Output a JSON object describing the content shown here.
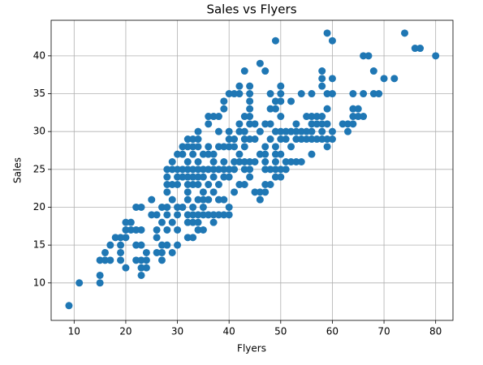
{
  "chart_data": {
    "type": "scatter",
    "title": "Sales vs Flyers",
    "x_label": "Flyers",
    "y_label": "Sales",
    "color": "#1f77b4",
    "grid": true,
    "xlim": [
      5.55,
      83.35
    ],
    "ylim": [
      5.05,
      44.7
    ],
    "xticks": [
      10,
      20,
      30,
      40,
      50,
      60,
      70,
      80
    ],
    "yticks": [
      10,
      15,
      20,
      25,
      30,
      35,
      40
    ],
    "x": [
      9,
      11,
      15,
      15,
      15,
      16,
      16,
      17,
      17,
      18,
      19,
      19,
      19,
      19,
      20,
      20,
      20,
      20,
      21,
      21,
      22,
      22,
      22,
      22,
      23,
      23,
      23,
      23,
      23,
      23,
      24,
      24,
      24,
      25,
      25,
      26,
      26,
      26,
      26,
      27,
      27,
      27,
      27,
      27,
      28,
      28,
      28,
      28,
      28,
      28,
      28,
      28,
      29,
      29,
      29,
      29,
      29,
      29,
      30,
      30,
      30,
      30,
      30,
      30,
      30,
      30,
      31,
      31,
      31,
      31,
      31,
      32,
      32,
      32,
      32,
      32,
      32,
      32,
      32,
      32,
      32,
      32,
      33,
      33,
      33,
      33,
      33,
      33,
      33,
      33,
      33,
      33,
      34,
      34,
      34,
      34,
      34,
      34,
      34,
      34,
      34,
      34,
      34,
      35,
      35,
      35,
      35,
      35,
      35,
      35,
      35,
      36,
      36,
      36,
      36,
      36,
      36,
      36,
      36,
      37,
      37,
      37,
      37,
      37,
      37,
      37,
      37,
      38,
      38,
      38,
      38,
      38,
      38,
      38,
      39,
      39,
      39,
      39,
      39,
      39,
      39,
      39,
      40,
      40,
      40,
      40,
      40,
      40,
      40,
      40,
      41,
      41,
      41,
      41,
      41,
      41,
      42,
      42,
      42,
      42,
      42,
      42,
      42,
      43,
      43,
      43,
      43,
      43,
      43,
      43,
      43,
      44,
      44,
      44,
      44,
      44,
      44,
      44,
      44,
      44,
      44,
      45,
      45,
      45,
      45,
      46,
      46,
      46,
      46,
      46,
      47,
      47,
      47,
      47,
      47,
      47,
      47,
      47,
      48,
      48,
      48,
      48,
      48,
      48,
      49,
      49,
      49,
      49,
      49,
      49,
      49,
      49,
      49,
      50,
      50,
      50,
      50,
      50,
      50,
      50,
      50,
      50,
      51,
      51,
      51,
      51,
      52,
      52,
      52,
      52,
      53,
      53,
      53,
      53,
      54,
      54,
      54,
      54,
      55,
      55,
      55,
      56,
      56,
      56,
      56,
      56,
      56,
      57,
      57,
      57,
      58,
      58,
      58,
      58,
      58,
      58,
      58,
      59,
      59,
      59,
      59,
      59,
      59,
      60,
      60,
      60,
      60,
      60,
      62,
      63,
      63,
      64,
      64,
      64,
      64,
      65,
      65,
      66,
      66,
      66,
      67,
      68,
      68,
      69,
      70,
      72,
      74,
      76,
      77,
      80
    ],
    "values": [
      7,
      10,
      10,
      11,
      13,
      13,
      14,
      13,
      15,
      16,
      13,
      14,
      15,
      16,
      12,
      16,
      17,
      18,
      17,
      18,
      13,
      15,
      17,
      20,
      11,
      12,
      13,
      15,
      17,
      20,
      12,
      13,
      14,
      19,
      21,
      14,
      16,
      17,
      19,
      13,
      14,
      15,
      18,
      20,
      15,
      17,
      19,
      20,
      22,
      23,
      24,
      25,
      14,
      18,
      21,
      23,
      25,
      26,
      15,
      17,
      19,
      20,
      23,
      24,
      25,
      27,
      20,
      24,
      25,
      27,
      28,
      16,
      18,
      19,
      21,
      22,
      23,
      24,
      25,
      26,
      28,
      29,
      16,
      18,
      19,
      20,
      23,
      24,
      25,
      27,
      28,
      29,
      17,
      18,
      19,
      21,
      23,
      24,
      25,
      26,
      28,
      29,
      30,
      17,
      19,
      20,
      21,
      22,
      24,
      25,
      27,
      19,
      21,
      23,
      25,
      27,
      28,
      31,
      32,
      18,
      19,
      22,
      24,
      25,
      26,
      27,
      32,
      19,
      21,
      23,
      25,
      28,
      30,
      32,
      19,
      21,
      24,
      25,
      26,
      28,
      33,
      34,
      19,
      20,
      24,
      25,
      28,
      29,
      30,
      35,
      22,
      25,
      26,
      28,
      29,
      35,
      23,
      26,
      27,
      30,
      31,
      35,
      36,
      23,
      25,
      26,
      28,
      29,
      30,
      32,
      38,
      24,
      25,
      26,
      29,
      31,
      32,
      33,
      34,
      35,
      36,
      22,
      26,
      29,
      31,
      21,
      22,
      27,
      30,
      39,
      22,
      23,
      25,
      26,
      27,
      28,
      31,
      38,
      23,
      25,
      29,
      31,
      33,
      35,
      24,
      25,
      26,
      27,
      28,
      30,
      33,
      34,
      42,
      24,
      25,
      27,
      29,
      30,
      32,
      34,
      35,
      36,
      25,
      26,
      29,
      30,
      26,
      28,
      30,
      34,
      26,
      29,
      30,
      31,
      26,
      29,
      30,
      35,
      29,
      30,
      32,
      27,
      29,
      30,
      31,
      32,
      35,
      29,
      31,
      32,
      29,
      30,
      31,
      32,
      36,
      37,
      38,
      28,
      29,
      31,
      33,
      35,
      43,
      29,
      30,
      35,
      37,
      42,
      31,
      30,
      31,
      31,
      32,
      33,
      35,
      32,
      33,
      32,
      35,
      40,
      40,
      35,
      38,
      35,
      37,
      37,
      43,
      41,
      41,
      40
    ]
  }
}
